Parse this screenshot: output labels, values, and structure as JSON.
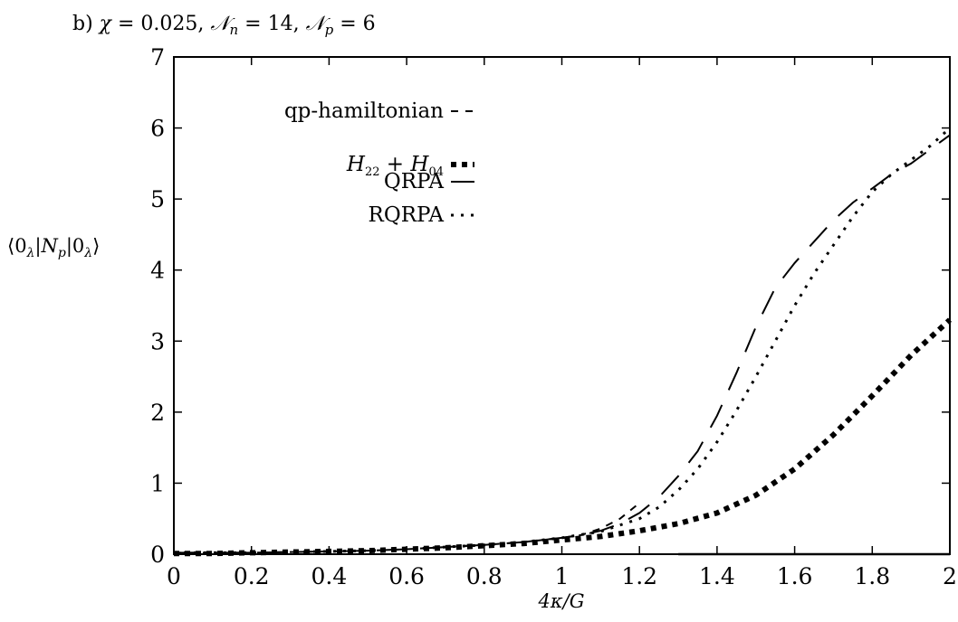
{
  "chart_data": {
    "type": "line",
    "title": "b) χ = 0.025,  𝒩n = 14, 𝒩p = 6",
    "xlabel": "4κ/G",
    "ylabel": "⟨0λ|Np|0λ⟩",
    "xlim": [
      0,
      2
    ],
    "ylim": [
      0,
      7
    ],
    "x_ticks": [
      0,
      0.2,
      0.4,
      0.6,
      0.8,
      1,
      1.2,
      1.4,
      1.6,
      1.8,
      2
    ],
    "x_tick_labels": [
      "0",
      "0.2",
      "0.4",
      "0.6",
      "0.8",
      "1",
      "1.2",
      "1.4",
      "1.6",
      "1.8",
      "2"
    ],
    "y_ticks": [
      0,
      1,
      2,
      3,
      4,
      5,
      6,
      7
    ],
    "y_tick_labels": [
      "0",
      "1",
      "2",
      "3",
      "4",
      "5",
      "6",
      "7"
    ],
    "grid": false,
    "legend_position": "top-left",
    "series": [
      {
        "name": "qp-hamiltonian",
        "style": "short-dash",
        "x": [
          0,
          0.1,
          0.2,
          0.3,
          0.4,
          0.5,
          0.6,
          0.7,
          0.8,
          0.9,
          1.0,
          1.05,
          1.1,
          1.15,
          1.2
        ],
        "y": [
          0.02,
          0.02,
          0.02,
          0.03,
          0.04,
          0.05,
          0.07,
          0.1,
          0.13,
          0.17,
          0.23,
          0.27,
          0.36,
          0.5,
          0.72
        ]
      },
      {
        "name": "H22 + H04",
        "style": "square-dots",
        "x": [
          0,
          0.1,
          0.2,
          0.3,
          0.4,
          0.5,
          0.6,
          0.7,
          0.8,
          0.9,
          1.0,
          1.1,
          1.2,
          1.3,
          1.4,
          1.5,
          1.6,
          1.7,
          1.8,
          1.9,
          2.0
        ],
        "y": [
          0.01,
          0.01,
          0.02,
          0.03,
          0.04,
          0.05,
          0.07,
          0.09,
          0.12,
          0.15,
          0.2,
          0.25,
          0.33,
          0.43,
          0.58,
          0.83,
          1.2,
          1.68,
          2.23,
          2.8,
          3.3
        ]
      },
      {
        "name": "QRPA",
        "style": "long-dash",
        "x": [
          0,
          0.1,
          0.2,
          0.3,
          0.4,
          0.5,
          0.6,
          0.7,
          0.8,
          0.9,
          1.0,
          1.05,
          1.1,
          1.15,
          1.2,
          1.25,
          1.3,
          1.35,
          1.4,
          1.45,
          1.5,
          1.55,
          1.6,
          1.65,
          1.7,
          1.75,
          1.8,
          1.85,
          1.9,
          1.95,
          2.0
        ],
        "y": [
          0.02,
          0.02,
          0.02,
          0.03,
          0.04,
          0.05,
          0.07,
          0.1,
          0.13,
          0.17,
          0.23,
          0.27,
          0.33,
          0.43,
          0.58,
          0.8,
          1.1,
          1.45,
          1.95,
          2.55,
          3.2,
          3.75,
          4.1,
          4.4,
          4.7,
          4.95,
          5.15,
          5.35,
          5.5,
          5.7,
          5.9
        ]
      },
      {
        "name": "RQRPA",
        "style": "small-dots",
        "x": [
          0,
          0.1,
          0.2,
          0.3,
          0.4,
          0.5,
          0.6,
          0.7,
          0.8,
          0.9,
          1.0,
          1.1,
          1.2,
          1.25,
          1.3,
          1.35,
          1.4,
          1.45,
          1.5,
          1.55,
          1.6,
          1.65,
          1.7,
          1.75,
          1.8,
          1.85,
          1.9,
          1.95,
          2.0
        ],
        "y": [
          0.02,
          0.02,
          0.02,
          0.03,
          0.04,
          0.05,
          0.07,
          0.1,
          0.13,
          0.17,
          0.23,
          0.32,
          0.5,
          0.66,
          0.9,
          1.2,
          1.58,
          2.02,
          2.5,
          3.0,
          3.5,
          3.95,
          4.35,
          4.75,
          5.1,
          5.35,
          5.55,
          5.75,
          6.0
        ]
      },
      {
        "name": "",
        "style": "solid",
        "x": [
          1.3,
          2.0
        ],
        "y": [
          0.0,
          0.0
        ]
      }
    ]
  },
  "legend": {
    "items": [
      {
        "label": "qp-hamiltonian",
        "style": "short-dash"
      },
      {
        "label": "H22 + H04",
        "style": "square-dots"
      },
      {
        "label": "QRPA",
        "style": "long-dash"
      },
      {
        "label": "RQRPA",
        "style": "small-dots"
      }
    ]
  }
}
